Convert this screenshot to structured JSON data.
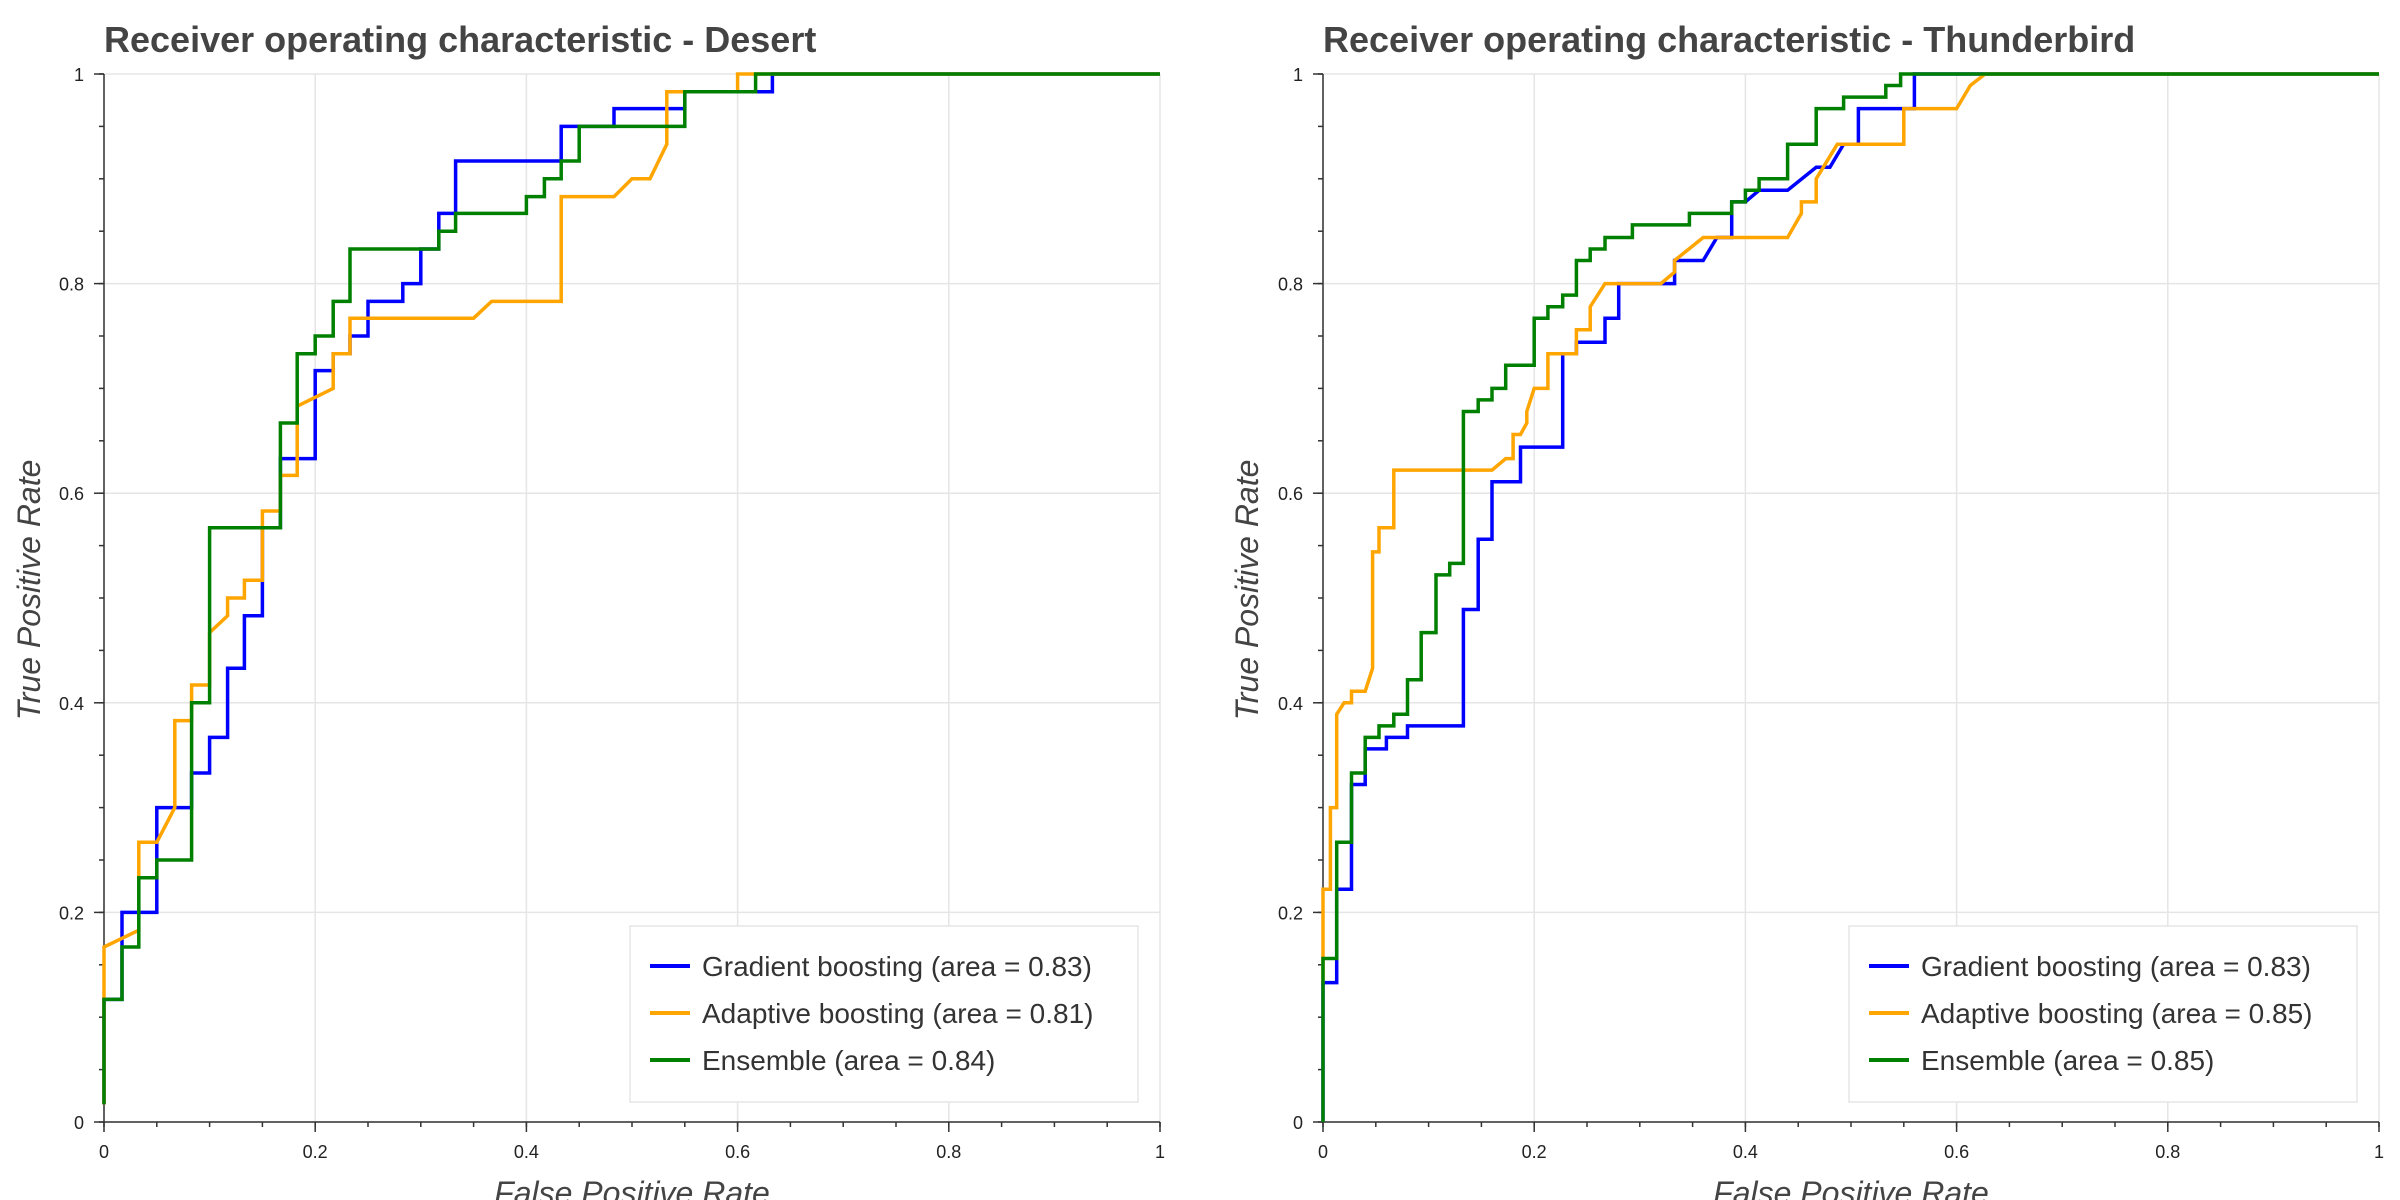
{
  "chart_data": [
    {
      "type": "line",
      "title": "Receiver operating characteristic - Desert",
      "xlabel": "False Positive Rate",
      "ylabel": "True Positive Rate",
      "xlim": [
        0,
        1
      ],
      "ylim": [
        0,
        1
      ],
      "x_ticks": [
        0,
        0.2,
        0.4,
        0.6,
        0.8,
        1
      ],
      "y_ticks": [
        0,
        0.2,
        0.4,
        0.6,
        0.8,
        1
      ],
      "x_tick_labels": [
        "0",
        "0.2",
        "0.4",
        "0.6",
        "0.8",
        "1"
      ],
      "y_tick_labels": [
        "0",
        "0.2",
        "0.4",
        "0.6",
        "0.8",
        "1"
      ],
      "grid": true,
      "legend_position": "bottom-right",
      "series": [
        {
          "name": "Gradient boosting (area = 0.83)",
          "color": "#0000ff",
          "x": [
            0,
            0,
            0.017,
            0.017,
            0.05,
            0.05,
            0.083,
            0.083,
            0.1,
            0.1,
            0.117,
            0.117,
            0.133,
            0.133,
            0.15,
            0.15,
            0.167,
            0.167,
            0.2,
            0.2,
            0.217,
            0.217,
            0.233,
            0.233,
            0.25,
            0.25,
            0.283,
            0.283,
            0.3,
            0.3,
            0.317,
            0.317,
            0.333,
            0.333,
            0.433,
            0.433,
            0.483,
            0.483,
            0.55,
            0.55,
            0.617,
            0.617,
            0.633,
            0.633,
            1.0
          ],
          "y": [
            0.017,
            0.117,
            0.117,
            0.2,
            0.2,
            0.3,
            0.3,
            0.333,
            0.333,
            0.367,
            0.367,
            0.433,
            0.433,
            0.483,
            0.483,
            0.567,
            0.567,
            0.633,
            0.633,
            0.717,
            0.717,
            0.733,
            0.733,
            0.75,
            0.75,
            0.783,
            0.783,
            0.8,
            0.8,
            0.833,
            0.833,
            0.867,
            0.867,
            0.917,
            0.917,
            0.95,
            0.95,
            0.967,
            0.967,
            0.983,
            0.983,
            0.983,
            0.983,
            1.0,
            1.0
          ]
        },
        {
          "name": "Adaptive boosting (area = 0.81)",
          "color": "#ffa500",
          "x": [
            0,
            0,
            0.033,
            0.033,
            0.05,
            0.067,
            0.067,
            0.083,
            0.083,
            0.1,
            0.1,
            0.117,
            0.117,
            0.133,
            0.133,
            0.15,
            0.15,
            0.167,
            0.167,
            0.183,
            0.183,
            0.217,
            0.217,
            0.233,
            0.233,
            0.283,
            0.283,
            0.35,
            0.367,
            0.433,
            0.433,
            0.483,
            0.5,
            0.517,
            0.533,
            0.533,
            0.55,
            0.583,
            0.6,
            0.6,
            0.617,
            1.0
          ],
          "y": [
            0.017,
            0.167,
            0.183,
            0.267,
            0.267,
            0.3,
            0.383,
            0.383,
            0.417,
            0.417,
            0.467,
            0.483,
            0.5,
            0.5,
            0.517,
            0.517,
            0.583,
            0.583,
            0.617,
            0.617,
            0.683,
            0.7,
            0.733,
            0.733,
            0.767,
            0.767,
            0.767,
            0.767,
            0.783,
            0.783,
            0.883,
            0.883,
            0.9,
            0.9,
            0.933,
            0.983,
            0.983,
            0.983,
            0.983,
            1.0,
            1.0,
            1.0
          ]
        },
        {
          "name": "Ensemble (area = 0.84)",
          "color": "#008000",
          "x": [
            0,
            0,
            0.017,
            0.017,
            0.033,
            0.033,
            0.05,
            0.05,
            0.083,
            0.083,
            0.1,
            0.1,
            0.167,
            0.167,
            0.183,
            0.183,
            0.2,
            0.2,
            0.217,
            0.217,
            0.233,
            0.233,
            0.317,
            0.317,
            0.333,
            0.333,
            0.4,
            0.4,
            0.417,
            0.417,
            0.433,
            0.433,
            0.45,
            0.45,
            0.55,
            0.55,
            0.6,
            0.6,
            0.617,
            0.617,
            1.0
          ],
          "y": [
            0.017,
            0.117,
            0.117,
            0.167,
            0.167,
            0.233,
            0.233,
            0.25,
            0.25,
            0.4,
            0.4,
            0.567,
            0.567,
            0.667,
            0.667,
            0.733,
            0.733,
            0.75,
            0.75,
            0.783,
            0.783,
            0.833,
            0.833,
            0.85,
            0.85,
            0.867,
            0.867,
            0.883,
            0.883,
            0.9,
            0.9,
            0.917,
            0.917,
            0.95,
            0.95,
            0.983,
            0.983,
            0.983,
            0.983,
            1.0,
            1.0
          ]
        }
      ]
    },
    {
      "type": "line",
      "title": "Receiver operating characteristic - Thunderbird",
      "xlabel": "False Positive Rate",
      "ylabel": "True Positive Rate",
      "xlim": [
        0,
        1
      ],
      "ylim": [
        0,
        1
      ],
      "x_ticks": [
        0,
        0.2,
        0.4,
        0.6,
        0.8,
        1
      ],
      "y_ticks": [
        0,
        0.2,
        0.4,
        0.6,
        0.8,
        1
      ],
      "x_tick_labels": [
        "0",
        "0.2",
        "0.4",
        "0.6",
        "0.8",
        "1"
      ],
      "y_tick_labels": [
        "0",
        "0.2",
        "0.4",
        "0.6",
        "0.8",
        "1"
      ],
      "grid": true,
      "legend_position": "bottom-right",
      "series": [
        {
          "name": "Gradient boosting (area = 0.83)",
          "color": "#0000ff",
          "x": [
            0,
            0,
            0.013,
            0.013,
            0.027,
            0.027,
            0.04,
            0.04,
            0.06,
            0.06,
            0.08,
            0.08,
            0.093,
            0.093,
            0.133,
            0.133,
            0.147,
            0.147,
            0.16,
            0.16,
            0.187,
            0.187,
            0.227,
            0.227,
            0.24,
            0.24,
            0.267,
            0.267,
            0.28,
            0.28,
            0.333,
            0.333,
            0.36,
            0.373,
            0.387,
            0.387,
            0.4,
            0.413,
            0.413,
            0.44,
            0.44,
            0.467,
            0.48,
            0.493,
            0.507,
            0.507,
            0.56,
            0.56,
            1.0
          ],
          "y": [
            0,
            0.133,
            0.133,
            0.222,
            0.222,
            0.322,
            0.322,
            0.356,
            0.356,
            0.367,
            0.367,
            0.378,
            0.378,
            0.378,
            0.378,
            0.489,
            0.489,
            0.556,
            0.556,
            0.611,
            0.611,
            0.644,
            0.644,
            0.733,
            0.733,
            0.744,
            0.744,
            0.767,
            0.767,
            0.8,
            0.8,
            0.822,
            0.822,
            0.844,
            0.844,
            0.878,
            0.878,
            0.889,
            0.889,
            0.889,
            0.889,
            0.911,
            0.911,
            0.933,
            0.933,
            0.967,
            0.967,
            1.0,
            1.0
          ]
        },
        {
          "name": "Adaptive boosting (area = 0.85)",
          "color": "#ffa500",
          "x": [
            0,
            0,
            0.007,
            0.007,
            0.013,
            0.013,
            0.02,
            0.027,
            0.027,
            0.04,
            0.047,
            0.047,
            0.053,
            0.053,
            0.067,
            0.067,
            0.16,
            0.173,
            0.18,
            0.18,
            0.187,
            0.193,
            0.193,
            0.2,
            0.213,
            0.213,
            0.24,
            0.24,
            0.253,
            0.253,
            0.267,
            0.32,
            0.333,
            0.333,
            0.36,
            0.373,
            0.44,
            0.453,
            0.453,
            0.467,
            0.467,
            0.487,
            0.55,
            0.55,
            0.6,
            0.613,
            0.627,
            1.0
          ],
          "y": [
            0.133,
            0.222,
            0.222,
            0.3,
            0.3,
            0.389,
            0.4,
            0.4,
            0.411,
            0.411,
            0.433,
            0.544,
            0.544,
            0.567,
            0.567,
            0.622,
            0.622,
            0.633,
            0.633,
            0.656,
            0.656,
            0.667,
            0.678,
            0.7,
            0.7,
            0.733,
            0.733,
            0.756,
            0.756,
            0.778,
            0.8,
            0.8,
            0.811,
            0.822,
            0.844,
            0.844,
            0.844,
            0.867,
            0.878,
            0.878,
            0.9,
            0.933,
            0.933,
            0.967,
            0.967,
            0.989,
            1.0,
            1.0
          ]
        },
        {
          "name": "Ensemble (area = 0.85)",
          "color": "#008000",
          "x": [
            0,
            0,
            0.013,
            0.013,
            0.027,
            0.027,
            0.04,
            0.04,
            0.053,
            0.053,
            0.067,
            0.067,
            0.08,
            0.08,
            0.093,
            0.093,
            0.107,
            0.107,
            0.12,
            0.12,
            0.133,
            0.133,
            0.147,
            0.147,
            0.16,
            0.16,
            0.173,
            0.173,
            0.2,
            0.2,
            0.213,
            0.213,
            0.227,
            0.227,
            0.24,
            0.24,
            0.253,
            0.253,
            0.267,
            0.267,
            0.28,
            0.28,
            0.293,
            0.293,
            0.347,
            0.347,
            0.387,
            0.387,
            0.4,
            0.4,
            0.413,
            0.413,
            0.427,
            0.427,
            0.44,
            0.44,
            0.467,
            0.467,
            0.493,
            0.493,
            0.507,
            0.507,
            0.533,
            0.533,
            0.547,
            0.547,
            0.56,
            0.56,
            1.0
          ],
          "y": [
            0,
            0.156,
            0.156,
            0.267,
            0.267,
            0.333,
            0.333,
            0.367,
            0.367,
            0.378,
            0.378,
            0.389,
            0.389,
            0.422,
            0.422,
            0.467,
            0.467,
            0.522,
            0.522,
            0.533,
            0.533,
            0.678,
            0.678,
            0.689,
            0.689,
            0.7,
            0.7,
            0.722,
            0.722,
            0.767,
            0.767,
            0.778,
            0.778,
            0.789,
            0.789,
            0.822,
            0.822,
            0.833,
            0.833,
            0.844,
            0.844,
            0.844,
            0.844,
            0.856,
            0.856,
            0.867,
            0.867,
            0.878,
            0.878,
            0.889,
            0.889,
            0.9,
            0.9,
            0.9,
            0.9,
            0.933,
            0.933,
            0.967,
            0.967,
            0.978,
            0.978,
            0.978,
            0.978,
            0.989,
            0.989,
            1.0,
            1.0,
            1.0,
            1.0
          ]
        }
      ]
    }
  ]
}
